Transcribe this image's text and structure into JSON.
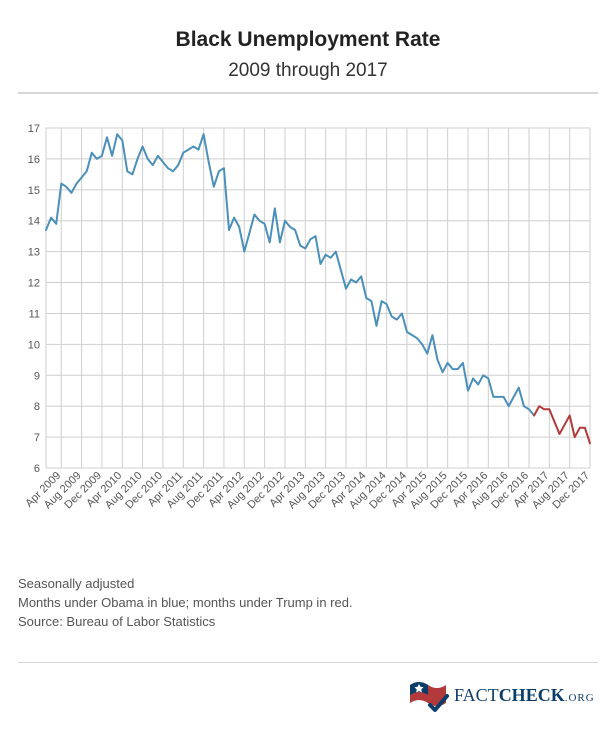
{
  "title": "Black Unemployment Rate",
  "subtitle": "2009 through 2017",
  "notes": [
    "Seasonally adjusted",
    "Months under Obama in blue; months under Trump in red.",
    "Source: Bureau of Labor Statistics"
  ],
  "chart": {
    "type": "line",
    "background_color": "#ffffff",
    "grid_color": "#cfcfcf",
    "axis_font_size": 11,
    "axis_font_color": "#555555",
    "y": {
      "min": 6,
      "max": 17,
      "ticks": [
        6,
        7,
        8,
        9,
        10,
        11,
        12,
        13,
        14,
        15,
        16,
        17
      ]
    },
    "x": {
      "labels_every": 4,
      "label_rotation": -45,
      "categories": [
        "Jan 2009",
        "Feb 2009",
        "Mar 2009",
        "Apr 2009",
        "May 2009",
        "Jun 2009",
        "Jul 2009",
        "Aug 2009",
        "Sep 2009",
        "Oct 2009",
        "Nov 2009",
        "Dec 2009",
        "Jan 2010",
        "Feb 2010",
        "Mar 2010",
        "Apr 2010",
        "May 2010",
        "Jun 2010",
        "Jul 2010",
        "Aug 2010",
        "Sep 2010",
        "Oct 2010",
        "Nov 2010",
        "Dec 2010",
        "Jan 2011",
        "Feb 2011",
        "Mar 2011",
        "Apr 2011",
        "May 2011",
        "Jun 2011",
        "Jul 2011",
        "Aug 2011",
        "Sep 2011",
        "Oct 2011",
        "Nov 2011",
        "Dec 2011",
        "Jan 2012",
        "Feb 2012",
        "Mar 2012",
        "Apr 2012",
        "May 2012",
        "Jun 2012",
        "Jul 2012",
        "Aug 2012",
        "Sep 2012",
        "Oct 2012",
        "Nov 2012",
        "Dec 2012",
        "Jan 2013",
        "Feb 2013",
        "Mar 2013",
        "Apr 2013",
        "May 2013",
        "Jun 2013",
        "Jul 2013",
        "Aug 2013",
        "Sep 2013",
        "Oct 2013",
        "Nov 2013",
        "Dec 2013",
        "Jan 2014",
        "Feb 2014",
        "Mar 2014",
        "Apr 2014",
        "May 2014",
        "Jun 2014",
        "Jul 2014",
        "Aug 2014",
        "Sep 2014",
        "Oct 2014",
        "Nov 2014",
        "Dec 2014",
        "Jan 2015",
        "Feb 2015",
        "Mar 2015",
        "Apr 2015",
        "May 2015",
        "Jun 2015",
        "Jul 2015",
        "Aug 2015",
        "Sep 2015",
        "Oct 2015",
        "Nov 2015",
        "Dec 2015",
        "Jan 2016",
        "Feb 2016",
        "Mar 2016",
        "Apr 2016",
        "May 2016",
        "Jun 2016",
        "Jul 2016",
        "Aug 2016",
        "Sep 2016",
        "Oct 2016",
        "Nov 2016",
        "Dec 2016",
        "Jan 2017",
        "Feb 2017",
        "Mar 2017",
        "Apr 2017",
        "May 2017",
        "Jun 2017",
        "Jul 2017",
        "Aug 2017",
        "Sep 2017",
        "Oct 2017",
        "Nov 2017",
        "Dec 2017"
      ]
    },
    "series": [
      {
        "name": "Obama",
        "color": "#4a90ba",
        "line_width": 2,
        "start_index": 0,
        "values": [
          13.7,
          14.1,
          13.9,
          15.2,
          15.1,
          14.9,
          15.2,
          15.4,
          15.6,
          16.2,
          16.0,
          16.1,
          16.7,
          16.1,
          16.8,
          16.6,
          15.6,
          15.5,
          16.0,
          16.4,
          16.0,
          15.8,
          16.1,
          15.9,
          15.7,
          15.6,
          15.8,
          16.2,
          16.3,
          16.4,
          16.3,
          16.8,
          15.9,
          15.1,
          15.6,
          15.7,
          13.7,
          14.1,
          13.8,
          13.0,
          13.6,
          14.2,
          14.0,
          13.9,
          13.3,
          14.4,
          13.3,
          14.0,
          13.8,
          13.7,
          13.2,
          13.1,
          13.4,
          13.5,
          12.6,
          12.9,
          12.8,
          13.0,
          12.4,
          11.8,
          12.1,
          12.0,
          12.2,
          11.5,
          11.4,
          10.6,
          11.4,
          11.3,
          10.9,
          10.8,
          11.0,
          10.4,
          10.3,
          10.2,
          10.0,
          9.7,
          10.3,
          9.5,
          9.1,
          9.4,
          9.2,
          9.2,
          9.4,
          8.5,
          8.9,
          8.7,
          9.0,
          8.9,
          8.3,
          8.3,
          8.3,
          8.0,
          8.3,
          8.6,
          8.0,
          7.9,
          7.7
        ]
      },
      {
        "name": "Trump",
        "color": "#b23a3a",
        "line_width": 2,
        "start_index": 96,
        "values": [
          7.7,
          8.0,
          7.9,
          7.9,
          7.5,
          7.1,
          7.4,
          7.7,
          7.0,
          7.3,
          7.3,
          6.8
        ]
      }
    ]
  },
  "brand": {
    "name": "FactCheck.org",
    "primary_color": "#0b3d6b",
    "accent_color": "#b23a3a",
    "text_upper": "FACT",
    "text_upper2": "CHECK",
    "text_suffix": ".ORG"
  }
}
